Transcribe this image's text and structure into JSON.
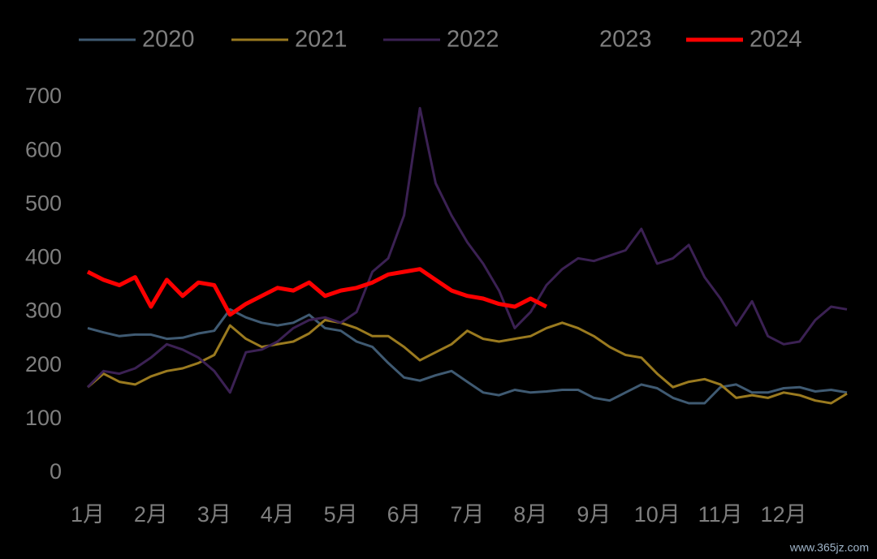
{
  "chart_data": {
    "type": "line",
    "x": [
      1,
      1.25,
      1.5,
      1.75,
      2,
      2.25,
      2.5,
      2.75,
      3,
      3.25,
      3.5,
      3.75,
      4,
      4.25,
      4.5,
      4.75,
      5,
      5.25,
      5.5,
      5.75,
      6,
      6.25,
      6.5,
      6.75,
      7,
      7.25,
      7.5,
      7.75,
      8,
      8.25,
      8.5,
      8.75,
      9,
      9.25,
      9.5,
      9.75,
      10,
      10.25,
      10.5,
      10.75,
      11,
      11.25,
      11.5,
      11.75,
      12,
      12.25,
      12.5,
      12.75,
      13
    ],
    "xlim": [
      1,
      13
    ],
    "xticks": [
      {
        "value": 1,
        "label": "1月"
      },
      {
        "value": 2,
        "label": "2月"
      },
      {
        "value": 3,
        "label": "3月"
      },
      {
        "value": 4,
        "label": "4月"
      },
      {
        "value": 5,
        "label": "5月"
      },
      {
        "value": 6,
        "label": "6月"
      },
      {
        "value": 7,
        "label": "7月"
      },
      {
        "value": 8,
        "label": "8月"
      },
      {
        "value": 9,
        "label": "9月"
      },
      {
        "value": 10,
        "label": "10月"
      },
      {
        "value": 11,
        "label": "11月"
      },
      {
        "value": 12,
        "label": "12月"
      }
    ],
    "ylim": [
      0,
      700
    ],
    "yticks": [
      0,
      100,
      200,
      300,
      400,
      500,
      600,
      700
    ],
    "series": [
      {
        "name": "2020",
        "color": "#3f5a72",
        "width": 3,
        "values": [
          270,
          262,
          255,
          258,
          258,
          250,
          252,
          260,
          265,
          305,
          290,
          280,
          275,
          280,
          295,
          270,
          265,
          245,
          235,
          205,
          178,
          172,
          182,
          190,
          170,
          150,
          145,
          155,
          150,
          152,
          155,
          155,
          140,
          135,
          150,
          165,
          158,
          140,
          130,
          130,
          160,
          165,
          150,
          150,
          158,
          160,
          152,
          155,
          150
        ]
      },
      {
        "name": "2021",
        "color": "#9a7a1f",
        "width": 3,
        "values": [
          160,
          185,
          170,
          165,
          180,
          190,
          195,
          205,
          220,
          275,
          250,
          235,
          240,
          245,
          260,
          285,
          280,
          270,
          255,
          255,
          235,
          210,
          225,
          240,
          265,
          250,
          245,
          250,
          255,
          270,
          280,
          270,
          255,
          235,
          220,
          215,
          185,
          160,
          170,
          175,
          165,
          140,
          145,
          140,
          150,
          145,
          135,
          130,
          148
        ]
      },
      {
        "name": "2022",
        "color": "#3b2153",
        "width": 3,
        "values": [
          160,
          190,
          185,
          195,
          215,
          240,
          230,
          215,
          190,
          150,
          225,
          230,
          245,
          270,
          285,
          290,
          280,
          300,
          375,
          400,
          480,
          680,
          540,
          480,
          430,
          390,
          340,
          270,
          300,
          350,
          380,
          400,
          395,
          405,
          415,
          455,
          390,
          400,
          425,
          365,
          325,
          275,
          320,
          255,
          240,
          245,
          285,
          310,
          305
        ]
      },
      {
        "name": "2023",
        "color": "#000000",
        "width": 3,
        "values": [
          null,
          null,
          null,
          null,
          null,
          null,
          null,
          null,
          null,
          null,
          null,
          null,
          null,
          null,
          null,
          null,
          null,
          null,
          null,
          null,
          null,
          null,
          null,
          null,
          null,
          null,
          null,
          null,
          null,
          null,
          null,
          null,
          null,
          null,
          null,
          null,
          null,
          null,
          null,
          null,
          null,
          null,
          null,
          null,
          null,
          null,
          null,
          null,
          null
        ]
      },
      {
        "name": "2024",
        "color": "#ff0000",
        "width": 5,
        "values": [
          375,
          360,
          350,
          365,
          310,
          360,
          330,
          355,
          350,
          295,
          315,
          330,
          345,
          340,
          355,
          330,
          340,
          345,
          355,
          370,
          375,
          380,
          360,
          340,
          330,
          325,
          315,
          310,
          325,
          310,
          null,
          null,
          null,
          null,
          null,
          null,
          null,
          null,
          null,
          null,
          null,
          null,
          null,
          null,
          null,
          null,
          null,
          null,
          null
        ]
      }
    ],
    "watermark": "www.365jz.com"
  }
}
